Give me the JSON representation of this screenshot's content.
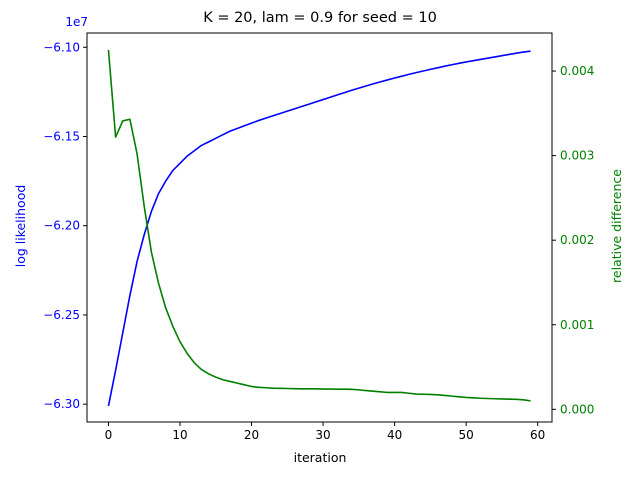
{
  "chart_data": {
    "type": "line",
    "title": "K = 20, lam = 0.9 for seed = 10",
    "xlabel": "iteration",
    "ylabel": "log likelihood",
    "y2label": "relative difference",
    "y_offset_label": "1e7",
    "xlim": [
      -3,
      62
    ],
    "ylim": [
      -6.31,
      -6.092
    ],
    "y2lim": [
      -0.00015,
      0.00445
    ],
    "x_ticks": [
      0,
      10,
      20,
      30,
      40,
      50,
      60
    ],
    "y_ticks": [
      -6.1,
      -6.15,
      -6.2,
      -6.25,
      -6.3
    ],
    "y_tick_labels": [
      "−6.10",
      "−6.15",
      "−6.20",
      "−6.25",
      "−6.30"
    ],
    "y2_ticks": [
      0.0,
      0.001,
      0.002,
      0.003,
      0.004
    ],
    "y2_tick_labels": [
      "0.000",
      "0.001",
      "0.002",
      "0.003",
      "0.004"
    ],
    "grid": false,
    "legend": "none",
    "colors": {
      "log_likelihood": "#0000ff",
      "relative_difference": "#008000"
    },
    "x": [
      0,
      1,
      2,
      3,
      4,
      5,
      6,
      7,
      8,
      9,
      10,
      11,
      12,
      13,
      14,
      15,
      16,
      17,
      18,
      19,
      20,
      21,
      22,
      23,
      24,
      25,
      26,
      27,
      28,
      29,
      30,
      31,
      32,
      33,
      34,
      35,
      36,
      37,
      38,
      39,
      40,
      41,
      42,
      43,
      44,
      45,
      46,
      47,
      48,
      49,
      50,
      51,
      52,
      53,
      54,
      55,
      56,
      57,
      58,
      59
    ],
    "series": [
      {
        "axis": "left",
        "values": [
          -6.301,
          -6.281,
          -6.26,
          -6.239,
          -6.22,
          -6.205,
          -6.192,
          -6.182,
          -6.175,
          -6.169,
          -6.165,
          -6.161,
          -6.158,
          -6.155,
          -6.153,
          -6.151,
          -6.149,
          -6.147,
          -6.1455,
          -6.144,
          -6.1425,
          -6.141,
          -6.1397,
          -6.1384,
          -6.1371,
          -6.1358,
          -6.1345,
          -6.1332,
          -6.1319,
          -6.1306,
          -6.1293,
          -6.128,
          -6.1267,
          -6.1254,
          -6.1241,
          -6.1229,
          -6.1217,
          -6.1205,
          -6.1194,
          -6.1183,
          -6.1172,
          -6.1162,
          -6.1152,
          -6.1142,
          -6.1133,
          -6.1124,
          -6.1115,
          -6.1106,
          -6.1098,
          -6.109,
          -6.1082,
          -6.1075,
          -6.1068,
          -6.1061,
          -6.1054,
          -6.1047,
          -6.104,
          -6.1033,
          -6.1027,
          -6.1022
        ]
      },
      {
        "axis": "right",
        "values": [
          0.00425,
          0.00322,
          0.00341,
          0.00343,
          0.00302,
          0.0024,
          0.00186,
          0.00149,
          0.0012,
          0.00098,
          0.0008,
          0.00066,
          0.00055,
          0.00047,
          0.00042,
          0.00038,
          0.00035,
          0.00033,
          0.00031,
          0.00029,
          0.00027,
          0.00026,
          0.000255,
          0.00025,
          0.000248,
          0.000246,
          0.000244,
          0.000243,
          0.000243,
          0.000242,
          0.00024,
          0.000239,
          0.000238,
          0.000238,
          0.000236,
          0.00023,
          0.000222,
          0.000214,
          0.000207,
          0.0002,
          0.0002,
          0.0002,
          0.00019,
          0.00018,
          0.000178,
          0.000176,
          0.000172,
          0.000164,
          0.000156,
          0.000148,
          0.000141,
          0.000136,
          0.000131,
          0.000128,
          0.000125,
          0.000123,
          0.00012,
          0.000118,
          0.000112,
          0.0001
        ]
      }
    ]
  }
}
